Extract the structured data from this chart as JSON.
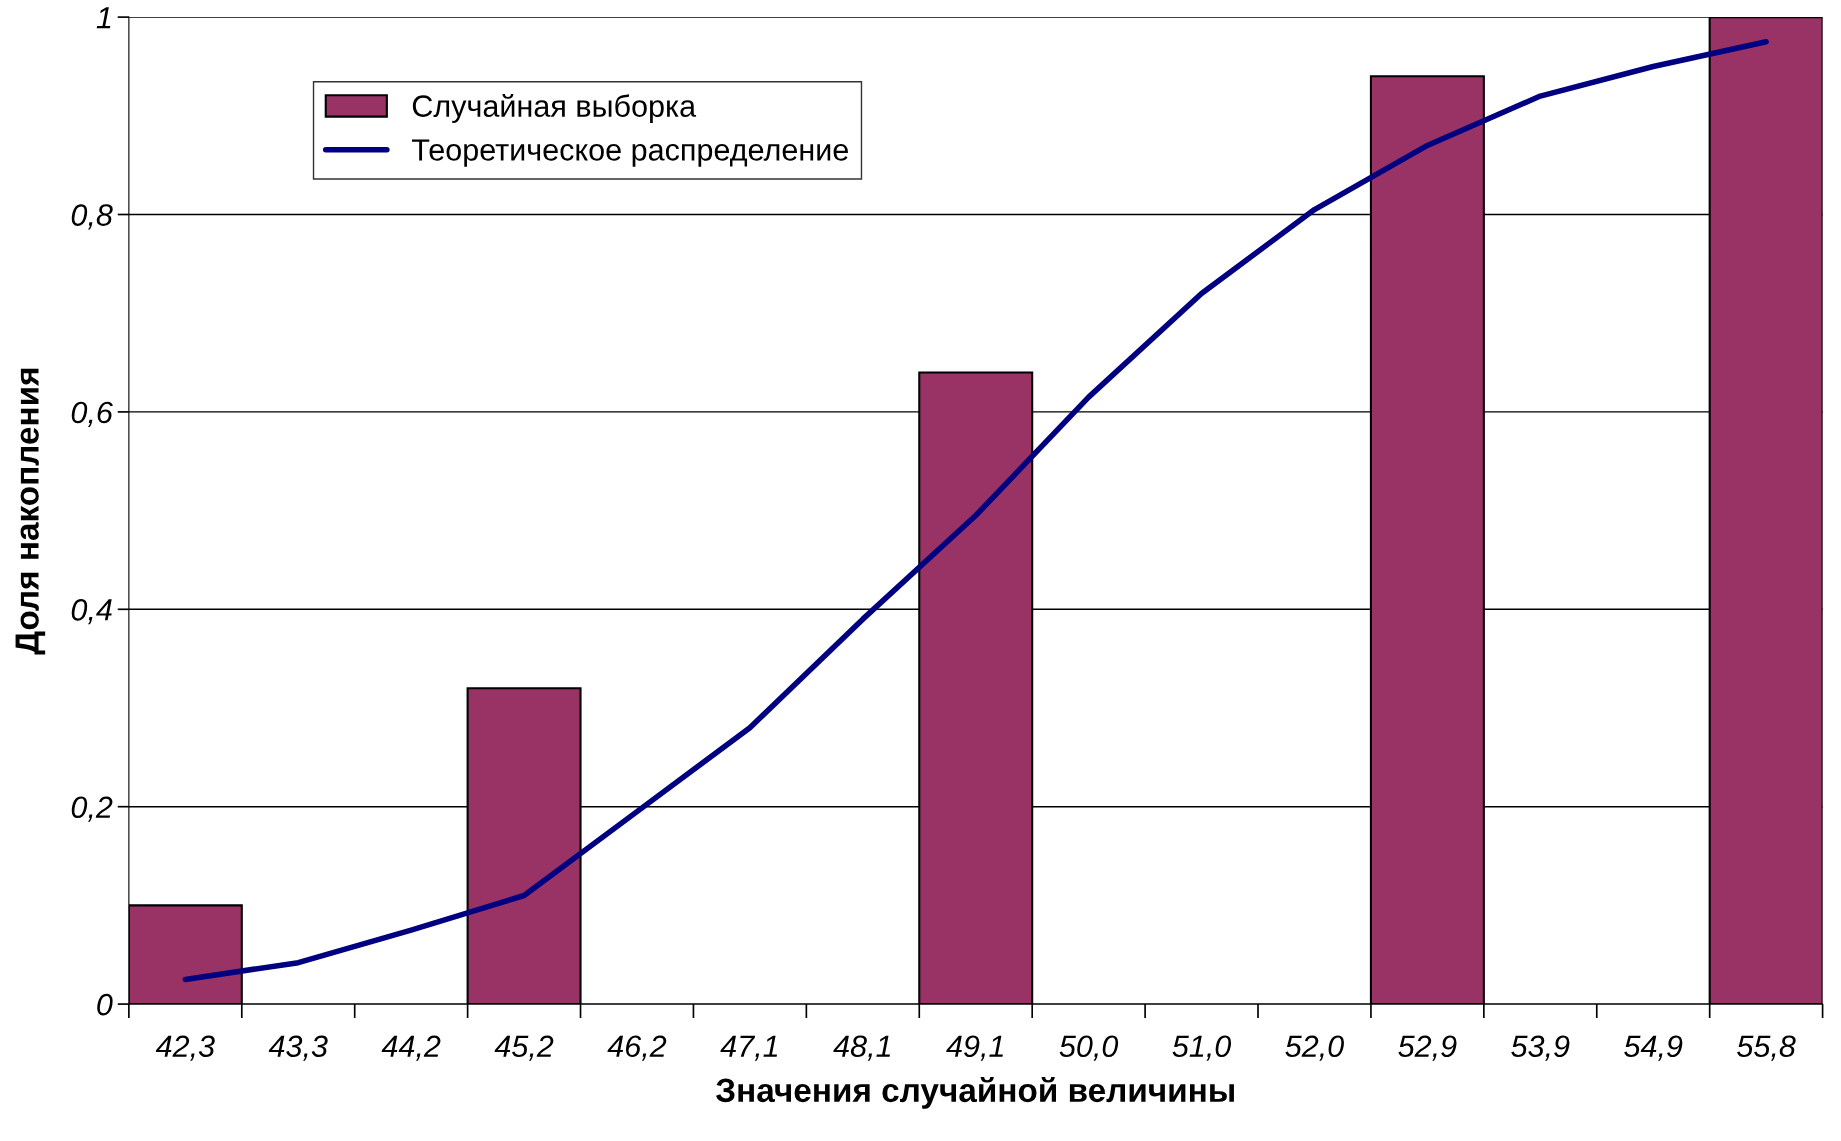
{
  "chart_data": {
    "type": "bar",
    "xlabel": "Значения случайной величины",
    "ylabel": "Доля накопления",
    "categories": [
      "42,3",
      "43,3",
      "44,2",
      "45,2",
      "46,2",
      "47,1",
      "48,1",
      "49,1",
      "50,0",
      "51,0",
      "52,0",
      "52,9",
      "53,9",
      "54,9",
      "55,8"
    ],
    "series": [
      {
        "name": "Случайная выборка",
        "color": "#993366",
        "values": [
          0.1,
          null,
          null,
          0.32,
          null,
          null,
          null,
          0.64,
          null,
          null,
          null,
          0.94,
          null,
          null,
          1.0
        ]
      },
      {
        "name": "Теоретическое распределение",
        "type": "line",
        "color": "#000080",
        "values": [
          0.025,
          0.042,
          0.075,
          0.11,
          0.195,
          0.28,
          0.39,
          0.495,
          0.615,
          0.72,
          0.805,
          0.87,
          0.92,
          0.95,
          0.975
        ]
      }
    ],
    "ylim": [
      0,
      1
    ],
    "yticks": [
      0,
      {
        "value": 0.2,
        "label": "0,2"
      },
      {
        "value": 0.4,
        "label": "0,4"
      },
      {
        "value": 0.6,
        "label": "0,6"
      },
      {
        "value": 0.8,
        "label": "0,8"
      },
      1
    ],
    "grid": "y",
    "legend": "top left",
    "marker": "none",
    "line_style": "solid"
  }
}
